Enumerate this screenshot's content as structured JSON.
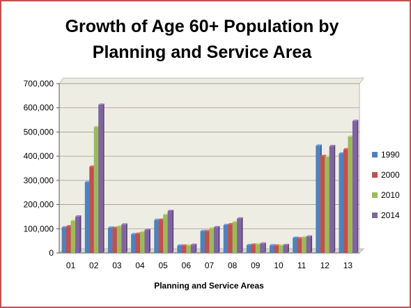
{
  "chart_data": {
    "type": "bar",
    "title": "Growth of Age 60+ Population by\nPlanning and Service Area",
    "xlabel": "Planning and Service Areas",
    "ylabel": "",
    "ylim": [
      0,
      700000
    ],
    "yticks": [
      "0",
      "100,000",
      "200,000",
      "300,000",
      "400,000",
      "500,000",
      "600,000",
      "700,000"
    ],
    "categories": [
      "01",
      "02",
      "03",
      "04",
      "05",
      "06",
      "07",
      "08",
      "09",
      "10",
      "11",
      "12",
      "13"
    ],
    "series": [
      {
        "name": "1990",
        "color": "#4f81bd",
        "values": [
          105000,
          292000,
          104000,
          77000,
          136000,
          30000,
          90000,
          115000,
          32000,
          31000,
          62000,
          443000,
          411000
        ]
      },
      {
        "name": "2000",
        "color": "#c0504d",
        "values": [
          110000,
          356000,
          103000,
          79000,
          137000,
          30000,
          90000,
          118000,
          34000,
          30000,
          60000,
          400000,
          428000
        ]
      },
      {
        "name": "2010",
        "color": "#9bbb59",
        "values": [
          133000,
          521000,
          110000,
          87000,
          158000,
          31000,
          102000,
          128000,
          36000,
          31000,
          65000,
          397000,
          481000
        ]
      },
      {
        "name": "2014",
        "color": "#8064a2",
        "values": [
          150000,
          612000,
          117000,
          95000,
          173000,
          33000,
          106000,
          142000,
          38000,
          32000,
          67000,
          441000,
          545000
        ]
      }
    ],
    "grid": true,
    "legend_position": "right"
  }
}
